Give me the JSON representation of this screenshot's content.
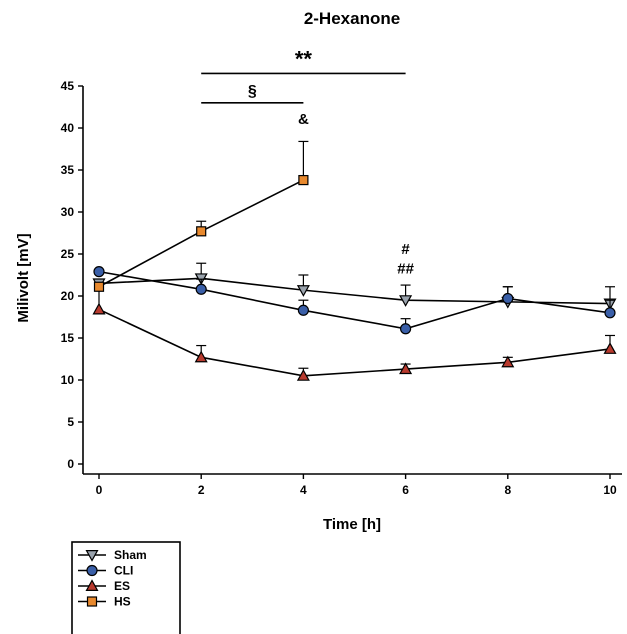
{
  "chart_data": {
    "type": "line",
    "title": "2-Hexanone",
    "xlabel": "Time [h]",
    "ylabel": "Milivolt [mV]",
    "xlim": [
      -0.6,
      10.6
    ],
    "ylim": [
      -1,
      45
    ],
    "xticks": [
      0,
      2,
      4,
      6,
      8,
      10
    ],
    "yticks": [
      0,
      5,
      10,
      15,
      20,
      25,
      30,
      35,
      40,
      45
    ],
    "grid": false,
    "legend_position": "bottom-left",
    "series": [
      {
        "name": "Sham",
        "marker": "triangle-down",
        "color": "#9aa3ad",
        "x": [
          0,
          2,
          4,
          6,
          8,
          10
        ],
        "y": [
          21.5,
          22.1,
          20.7,
          19.5,
          19.3,
          19.1
        ],
        "error": [
          0,
          1.8,
          1.8,
          1.8,
          1.8,
          2.0
        ]
      },
      {
        "name": "CLI",
        "marker": "circle",
        "color": "#3a5fa8",
        "x": [
          0,
          2,
          4,
          6,
          8,
          10
        ],
        "y": [
          22.9,
          20.8,
          18.3,
          16.1,
          19.7,
          18.0
        ],
        "error": [
          0,
          1.2,
          1.2,
          1.2,
          1.4,
          1.5
        ]
      },
      {
        "name": "ES",
        "marker": "triangle-up",
        "color": "#b83a2e",
        "x": [
          0,
          2,
          4,
          6,
          8,
          10
        ],
        "y": [
          18.4,
          12.7,
          10.5,
          11.3,
          12.1,
          13.7
        ],
        "error": [
          2.4,
          1.4,
          0.9,
          0.6,
          0.6,
          1.6
        ]
      },
      {
        "name": "HS",
        "marker": "square",
        "color": "#e8892e",
        "x": [
          0,
          2,
          4
        ],
        "y": [
          21.1,
          27.7,
          33.8
        ],
        "error": [
          0,
          1.2,
          4.6
        ]
      }
    ],
    "annotations": [
      {
        "text": "**",
        "x_start": 2,
        "x_end": 6,
        "y": 46.5,
        "kind": "bracket"
      },
      {
        "text": "§",
        "x_start": 2,
        "x_end": 4,
        "y": 43,
        "kind": "bracket"
      },
      {
        "text": "&",
        "x": 4,
        "y": 40.5,
        "kind": "label"
      },
      {
        "text": "#",
        "x": 6,
        "y": 25,
        "kind": "label"
      },
      {
        "text": "##",
        "x": 6,
        "y": 22.7,
        "kind": "label"
      }
    ]
  }
}
